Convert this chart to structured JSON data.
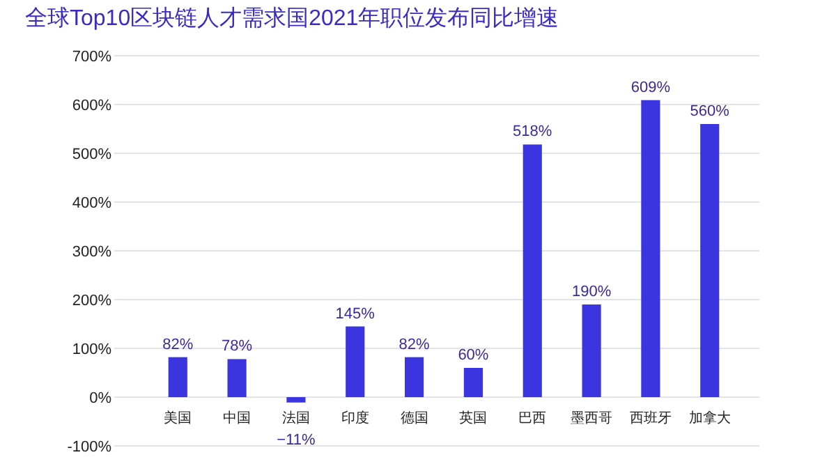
{
  "chart_data": {
    "type": "bar",
    "title": "全球Top10区块链人才需求国2021年职位发布同比增速",
    "categories": [
      "美国",
      "中国",
      "法国",
      "印度",
      "德国",
      "英国",
      "巴西",
      "墨西哥",
      "西班牙",
      "加拿大"
    ],
    "values": [
      82,
      78,
      -11,
      145,
      82,
      60,
      518,
      190,
      609,
      560
    ],
    "color": "#3b35e0",
    "ylim": [
      -100,
      700
    ],
    "yticks": [
      {
        "value": -100,
        "label": "-100%"
      },
      {
        "value": 0,
        "label": "0%"
      },
      {
        "value": 100,
        "label": "100%"
      },
      {
        "value": 200,
        "label": "200%"
      },
      {
        "value": 300,
        "label": "300%"
      },
      {
        "value": 400,
        "label": "400%"
      },
      {
        "value": 500,
        "label": "500%"
      },
      {
        "value": 600,
        "label": "600%"
      },
      {
        "value": 700,
        "label": "700%"
      }
    ],
    "value_labels": [
      "82%",
      "78%",
      "−11%",
      "145%",
      "82%",
      "60%",
      "518%",
      "190%",
      "609%",
      "560%"
    ],
    "grid": true
  }
}
